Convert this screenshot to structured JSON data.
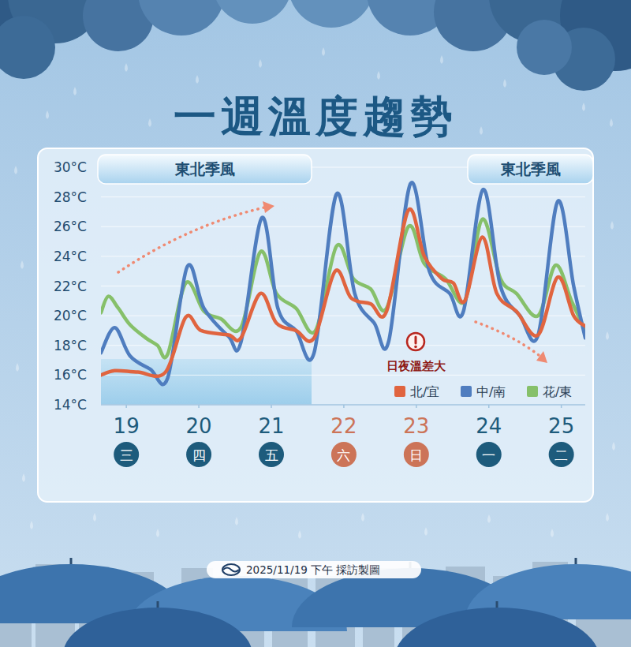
{
  "chart_data": {
    "type": "line",
    "title": "一週溫度趨勢",
    "xlim": [
      18.65,
      25.33
    ],
    "xticks": [
      19,
      20,
      21,
      22,
      23,
      24,
      25
    ],
    "weekdays": {
      "labels": [
        "三",
        "四",
        "五",
        "六",
        "日",
        "一",
        "二"
      ],
      "colors": [
        "#1d5b7c",
        "#1d5b7c",
        "#1d5b7c",
        "#cc7458",
        "#cc7458",
        "#1d5b7c",
        "#1d5b7c"
      ]
    },
    "ylim": [
      14,
      30
    ],
    "yticks": [
      {
        "value": 14,
        "label": "14°C"
      },
      {
        "value": 16,
        "label": "16°C"
      },
      {
        "value": 18,
        "label": "18°C"
      },
      {
        "value": 20,
        "label": "20°C"
      },
      {
        "value": 22,
        "label": "22°C"
      },
      {
        "value": 24,
        "label": "24°C"
      },
      {
        "value": 26,
        "label": "26°C"
      },
      {
        "value": 28,
        "label": "28°C"
      },
      {
        "value": 30,
        "label": "30°C"
      }
    ],
    "grid": true,
    "legend": "bottom-right",
    "annotations": [
      "東北季風",
      "東北季風"
    ],
    "note": "日夜溫差大",
    "source": "2025/11/19 下午 採訪製圖",
    "series": [
      {
        "name": "北/宜",
        "color": "#e0643f",
        "x": [
          18.65,
          18.84,
          19.16,
          19.54,
          19.82,
          20.03,
          20.41,
          20.58,
          20.85,
          21.07,
          21.34,
          21.59,
          21.88,
          22.1,
          22.37,
          22.59,
          22.89,
          23.11,
          23.35,
          23.51,
          23.67,
          23.91,
          24.11,
          24.38,
          24.68,
          24.95,
          25.17,
          25.33
        ],
        "values": [
          16.0,
          16.3,
          16.2,
          16.2,
          19.9,
          19.0,
          18.7,
          18.5,
          21.5,
          19.5,
          19.0,
          18.5,
          23.0,
          21.2,
          20.8,
          20.3,
          27.1,
          24.0,
          22.5,
          22.2,
          21.0,
          25.3,
          21.5,
          20.3,
          18.7,
          22.6,
          20.0,
          19.3
        ]
      },
      {
        "name": "中/南",
        "color": "#4f7dbf",
        "x": [
          18.65,
          18.84,
          19.05,
          19.33,
          19.57,
          19.84,
          20.07,
          20.41,
          20.58,
          20.87,
          21.09,
          21.34,
          21.59,
          21.9,
          22.15,
          22.42,
          22.62,
          22.92,
          23.18,
          23.46,
          23.65,
          23.92,
          24.16,
          24.43,
          24.68,
          24.95,
          25.17,
          25.33
        ],
        "values": [
          17.5,
          19.2,
          17.3,
          16.4,
          15.8,
          23.3,
          20.5,
          18.6,
          18.2,
          26.6,
          20.5,
          19.0,
          17.5,
          28.2,
          21.5,
          19.5,
          18.3,
          28.9,
          23.0,
          21.5,
          20.3,
          28.5,
          22.0,
          20.0,
          18.7,
          27.7,
          22.0,
          18.5
        ]
      },
      {
        "name": "花/東",
        "color": "#86c06a",
        "x": [
          18.65,
          18.75,
          18.89,
          19.05,
          19.27,
          19.43,
          19.57,
          19.82,
          20.07,
          20.3,
          20.58,
          20.85,
          21.07,
          21.34,
          21.61,
          21.9,
          22.13,
          22.37,
          22.59,
          22.89,
          23.11,
          23.4,
          23.67,
          23.91,
          24.16,
          24.38,
          24.68,
          24.92,
          25.14,
          25.33
        ],
        "values": [
          20.2,
          21.3,
          20.5,
          19.4,
          18.5,
          18.0,
          17.4,
          22.2,
          20.3,
          19.8,
          19.2,
          24.3,
          21.5,
          20.5,
          19.0,
          24.7,
          22.5,
          21.8,
          20.5,
          26.0,
          23.5,
          22.5,
          21.0,
          26.5,
          22.5,
          21.5,
          20.0,
          23.4,
          21.0,
          19.0
        ]
      }
    ]
  }
}
